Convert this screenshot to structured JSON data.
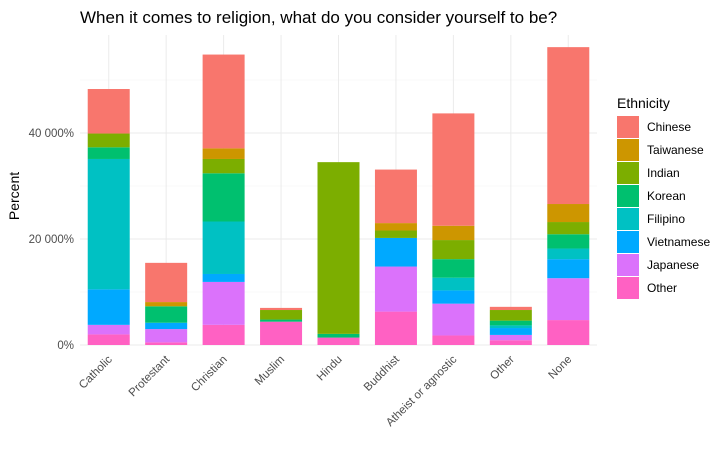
{
  "chart_data": {
    "type": "bar",
    "stacked": true,
    "title": "When it comes to religion, what do you consider yourself to be?",
    "xlabel": "",
    "ylabel": "Percent",
    "ylim": [
      0,
      58000
    ],
    "yticks": [
      0,
      20000,
      40000
    ],
    "ytick_labels": [
      "0%",
      "20 000%",
      "40 000%"
    ],
    "grid": true,
    "legend": {
      "title": "Ethnicity",
      "position": "right"
    },
    "categories": [
      "Catholic",
      "Protestant",
      "Christian",
      "Muslim",
      "Hindu",
      "Buddhist",
      "Atheist or agnostic",
      "Other",
      "None"
    ],
    "series": [
      {
        "name": "Other",
        "color": "#FF61C3",
        "values": [
          2000,
          500,
          3800,
          4400,
          1400,
          6300,
          1800,
          900,
          4700
        ]
      },
      {
        "name": "Japanese",
        "color": "#DB72FB",
        "values": [
          1800,
          2500,
          8100,
          0,
          0,
          8500,
          6000,
          1000,
          7900
        ]
      },
      {
        "name": "Vietnamese",
        "color": "#00A9FF",
        "values": [
          6700,
          1200,
          1500,
          0,
          0,
          5400,
          2500,
          1300,
          3600
        ]
      },
      {
        "name": "Filipino",
        "color": "#00C1C3",
        "values": [
          24600,
          0,
          9900,
          0,
          0,
          0,
          2400,
          500,
          2000
        ]
      },
      {
        "name": "Korean",
        "color": "#00C06F",
        "values": [
          2200,
          3100,
          9100,
          400,
          700,
          0,
          3500,
          900,
          2700
        ]
      },
      {
        "name": "Indian",
        "color": "#7CAE00",
        "values": [
          2600,
          0,
          2700,
          1800,
          32400,
          1400,
          3600,
          2000,
          2300
        ]
      },
      {
        "name": "Taiwanese",
        "color": "#CD9600",
        "values": [
          0,
          800,
          2000,
          0,
          0,
          1400,
          2700,
          0,
          3400
        ]
      },
      {
        "name": "Chinese",
        "color": "#F8766D",
        "values": [
          8400,
          7400,
          17700,
          400,
          0,
          10100,
          21200,
          600,
          29600
        ]
      }
    ],
    "legend_order": [
      "Chinese",
      "Taiwanese",
      "Indian",
      "Korean",
      "Filipino",
      "Vietnamese",
      "Japanese",
      "Other"
    ]
  }
}
